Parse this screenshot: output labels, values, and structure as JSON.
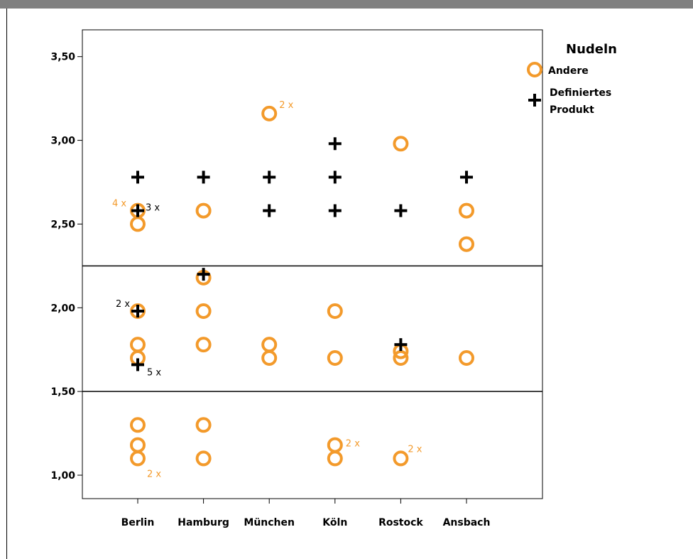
{
  "chart_data": {
    "type": "scatter",
    "categories": [
      "Berlin",
      "Hamburg",
      "München",
      "Köln",
      "Rostock",
      "Ansbach"
    ],
    "ylim": [
      0.86,
      3.66
    ],
    "yticks": [
      1.0,
      1.5,
      2.0,
      2.5,
      3.0,
      3.5
    ],
    "ytick_labels": [
      "1,00",
      "1,50",
      "2,00",
      "2,50",
      "3,00",
      "3,50"
    ],
    "reference_lines": [
      1.5,
      2.25
    ],
    "legend": {
      "title": "Nudeln",
      "position": "top-right",
      "entries": [
        {
          "label": "Andere",
          "marker": "circle",
          "color": "#F39A2B"
        },
        {
          "label": "Definiertes Produkt",
          "marker": "plus",
          "color": "#000000"
        }
      ]
    },
    "series": [
      {
        "name": "Andere",
        "marker": "circle",
        "color": "#F39A2B",
        "points": [
          {
            "category": "Berlin",
            "y": 2.58,
            "count": 4
          },
          {
            "category": "Berlin",
            "y": 2.5
          },
          {
            "category": "Berlin",
            "y": 1.98
          },
          {
            "category": "Berlin",
            "y": 1.78
          },
          {
            "category": "Berlin",
            "y": 1.7
          },
          {
            "category": "Berlin",
            "y": 1.3
          },
          {
            "category": "Berlin",
            "y": 1.18
          },
          {
            "category": "Berlin",
            "y": 1.1,
            "count": 2
          },
          {
            "category": "Hamburg",
            "y": 2.58
          },
          {
            "category": "Hamburg",
            "y": 2.18
          },
          {
            "category": "Hamburg",
            "y": 1.98
          },
          {
            "category": "Hamburg",
            "y": 1.78
          },
          {
            "category": "Hamburg",
            "y": 1.3
          },
          {
            "category": "Hamburg",
            "y": 1.1
          },
          {
            "category": "München",
            "y": 3.16,
            "count": 2
          },
          {
            "category": "München",
            "y": 1.78
          },
          {
            "category": "München",
            "y": 1.7
          },
          {
            "category": "Köln",
            "y": 1.98
          },
          {
            "category": "Köln",
            "y": 1.7
          },
          {
            "category": "Köln",
            "y": 1.18,
            "count": 2
          },
          {
            "category": "Köln",
            "y": 1.1
          },
          {
            "category": "Rostock",
            "y": 2.98
          },
          {
            "category": "Rostock",
            "y": 1.74
          },
          {
            "category": "Rostock",
            "y": 1.7
          },
          {
            "category": "Rostock",
            "y": 1.1,
            "count": 2
          },
          {
            "category": "Ansbach",
            "y": 2.58
          },
          {
            "category": "Ansbach",
            "y": 2.38
          },
          {
            "category": "Ansbach",
            "y": 1.7
          }
        ]
      },
      {
        "name": "Definiertes Produkt",
        "marker": "plus",
        "color": "#000000",
        "points": [
          {
            "category": "Berlin",
            "y": 2.78
          },
          {
            "category": "Berlin",
            "y": 2.58,
            "count": 3
          },
          {
            "category": "Berlin",
            "y": 1.98,
            "count": 2
          },
          {
            "category": "Berlin",
            "y": 1.66,
            "count": 5
          },
          {
            "category": "Hamburg",
            "y": 2.78
          },
          {
            "category": "Hamburg",
            "y": 2.2
          },
          {
            "category": "München",
            "y": 2.78
          },
          {
            "category": "München",
            "y": 2.58
          },
          {
            "category": "Köln",
            "y": 2.98
          },
          {
            "category": "Köln",
            "y": 2.78
          },
          {
            "category": "Köln",
            "y": 2.58
          },
          {
            "category": "Rostock",
            "y": 2.58
          },
          {
            "category": "Rostock",
            "y": 1.78
          },
          {
            "category": "Ansbach",
            "y": 2.78
          }
        ]
      }
    ]
  }
}
